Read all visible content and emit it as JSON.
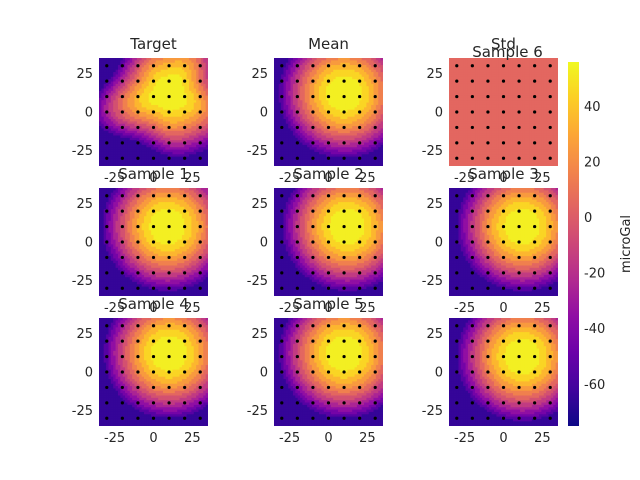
{
  "chart_data": {
    "type": "heatmap",
    "layout": "3x3 grid of filled-contour panels with shared colorbar on right",
    "x_ticks": [
      -25,
      0,
      25
    ],
    "y_ticks": [
      25,
      0,
      -25
    ],
    "xlim": [
      -35,
      35
    ],
    "ylim": [
      -35,
      35
    ],
    "grid": false,
    "colormap": "plasma",
    "colorbar": {
      "label": "microGal",
      "ticks": [
        40,
        20,
        0,
        -20,
        -40,
        -60
      ],
      "range": [
        -75,
        56
      ]
    },
    "sample_points": {
      "x": [
        -30,
        -20,
        -10,
        0,
        10,
        20,
        30
      ],
      "y": [
        -30,
        -20,
        -10,
        0,
        10,
        20,
        30
      ]
    },
    "contour_levels": [
      -70,
      -60,
      -50,
      -40,
      -30,
      -20,
      -10,
      0,
      10,
      20,
      30,
      40,
      50
    ],
    "panels": [
      {
        "title": "Target",
        "center": [
          10,
          12
        ],
        "peak": 52,
        "scale": 18,
        "irregular": true
      },
      {
        "title": "Mean",
        "center": [
          10,
          12
        ],
        "peak": 52,
        "scale": 18
      },
      {
        "title": "Std",
        "subtitle": "Sample 6",
        "constant": 5
      },
      {
        "title": "Sample 1",
        "center": [
          9,
          10
        ],
        "peak": 52,
        "scale": 18
      },
      {
        "title": "Sample 2",
        "center": [
          12,
          10
        ],
        "peak": 52,
        "scale": 18
      },
      {
        "title": "Sample 3",
        "center": [
          12,
          10
        ],
        "peak": 52,
        "scale": 18
      },
      {
        "title": "Sample 4",
        "center": [
          10,
          12
        ],
        "peak": 52,
        "scale": 18
      },
      {
        "title": "Sample 5",
        "center": [
          10,
          12
        ],
        "peak": 52,
        "scale": 18
      },
      {
        "title": "",
        "center": [
          12,
          10
        ],
        "peak": 52,
        "scale": 18
      }
    ]
  }
}
